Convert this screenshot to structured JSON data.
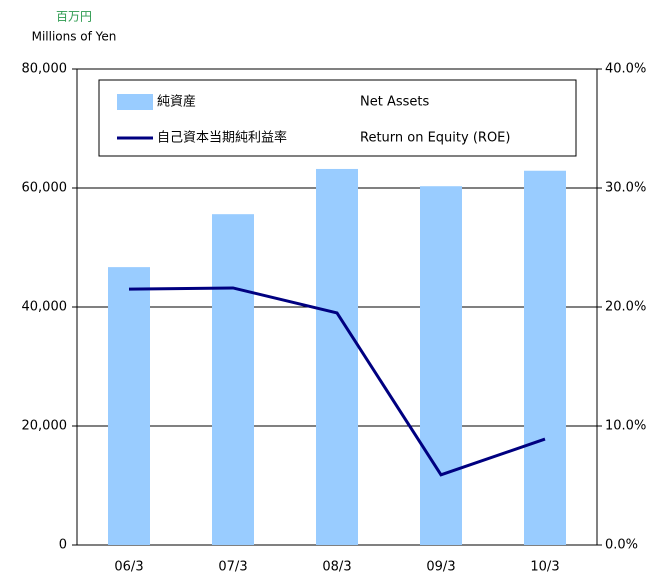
{
  "chart_data": {
    "type": "bar_line",
    "unit_label": "百万円",
    "unit_label_en": "Millions of Yen",
    "categories": [
      "06/3",
      "07/3",
      "08/3",
      "09/3",
      "10/3"
    ],
    "series": [
      {
        "name": "純資産",
        "name_en": "Net Assets",
        "type": "bar",
        "color": "#99ccff",
        "values": [
          46700,
          55600,
          63200,
          60300,
          62900
        ]
      },
      {
        "name": "自己資本当期純利益率",
        "name_en": "Return on Equity (ROE)",
        "type": "line",
        "axis": "y2",
        "color": "#000080",
        "values": [
          21.5,
          21.6,
          19.5,
          5.9,
          8.9
        ]
      }
    ],
    "ylim": [
      0,
      80000
    ],
    "yticks": [
      0,
      {
        "value": 20000,
        "label": "20,000"
      },
      {
        "value": 40000,
        "label": "40,000"
      },
      {
        "value": 60000,
        "label": "60,000"
      },
      {
        "value": 80000,
        "label": "80,000"
      }
    ],
    "y2lim": [
      0,
      40
    ],
    "y2ticks": [
      {
        "value": 0,
        "label": "0.0%"
      },
      {
        "value": 10,
        "label": "10.0%"
      },
      {
        "value": 20,
        "label": "20.0%"
      },
      {
        "value": 30,
        "label": "30.0%"
      },
      {
        "value": 40,
        "label": "40.0%"
      }
    ],
    "grid": true
  }
}
